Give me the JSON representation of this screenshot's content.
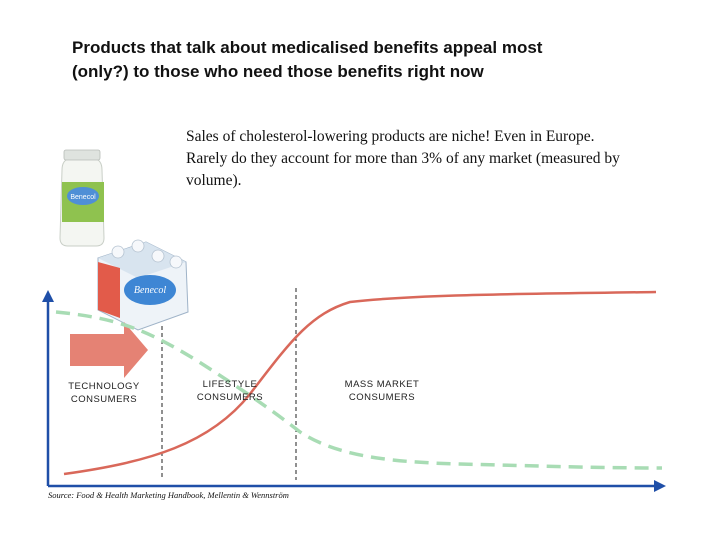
{
  "title": {
    "line1": "Products that talk about medicalised benefits appeal most",
    "line2": "(only?) to those who need those benefits right now"
  },
  "note": "Sales of cholesterol-lowering products are niche! Even in Europe. Rarely do they account for more than 3% of any market (measured by volume).",
  "segments": [
    {
      "line1": "TECHNOLOGY",
      "line2": "CONSUMERS"
    },
    {
      "line1": "LIFESTYLE",
      "line2": "CONSUMERS"
    },
    {
      "line1": "MASS MARKET",
      "line2": "CONSUMERS"
    }
  ],
  "source": "Source: Food & Health Marketing Handbook, Mellentin & Wennström",
  "colors": {
    "adoption_curve": "#d9685a",
    "dashed_curve": "#a8dcb4",
    "arrow": "#e58274",
    "axis": "#1f4fa8"
  },
  "product_images": [
    {
      "name": "cholesterol-drink-bottle",
      "brand_text": "Benecol"
    },
    {
      "name": "cholesterol-drink-multipack",
      "brand_text": "Benecol"
    }
  ]
}
